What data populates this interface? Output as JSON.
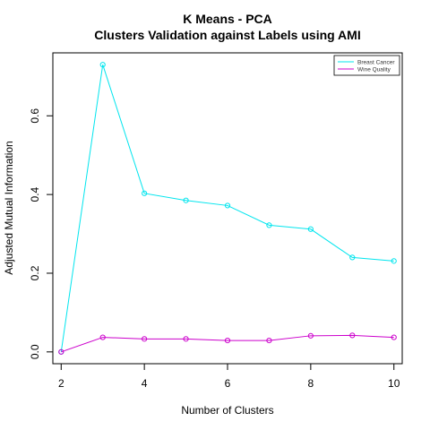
{
  "chart_data": {
    "type": "line",
    "title": "K Means - PCA",
    "subtitle": "Clusters Validation against Labels using AMI",
    "xlabel": "Number of Clusters",
    "ylabel": "Adjusted Mutual Information",
    "x": [
      2,
      3,
      4,
      5,
      6,
      7,
      8,
      9,
      10
    ],
    "xlim": [
      1.8,
      10.2
    ],
    "ylim": [
      -0.03,
      0.76
    ],
    "xticks": [
      2,
      4,
      6,
      8,
      10
    ],
    "yticks": [
      0.0,
      0.2,
      0.4,
      0.6
    ],
    "ytick_labels": [
      "0.0",
      "0.2",
      "0.4",
      "0.6"
    ],
    "grid": false,
    "legend_position": "top-right",
    "series": [
      {
        "name": "Breast Cancer",
        "color": "#00e5ee",
        "values": [
          0.0,
          0.73,
          0.403,
          0.385,
          0.372,
          0.322,
          0.312,
          0.24,
          0.231
        ]
      },
      {
        "name": "Wine Quality",
        "color": "#cc00cc",
        "values": [
          0.0,
          0.037,
          0.033,
          0.033,
          0.029,
          0.029,
          0.041,
          0.042,
          0.037
        ]
      }
    ]
  }
}
